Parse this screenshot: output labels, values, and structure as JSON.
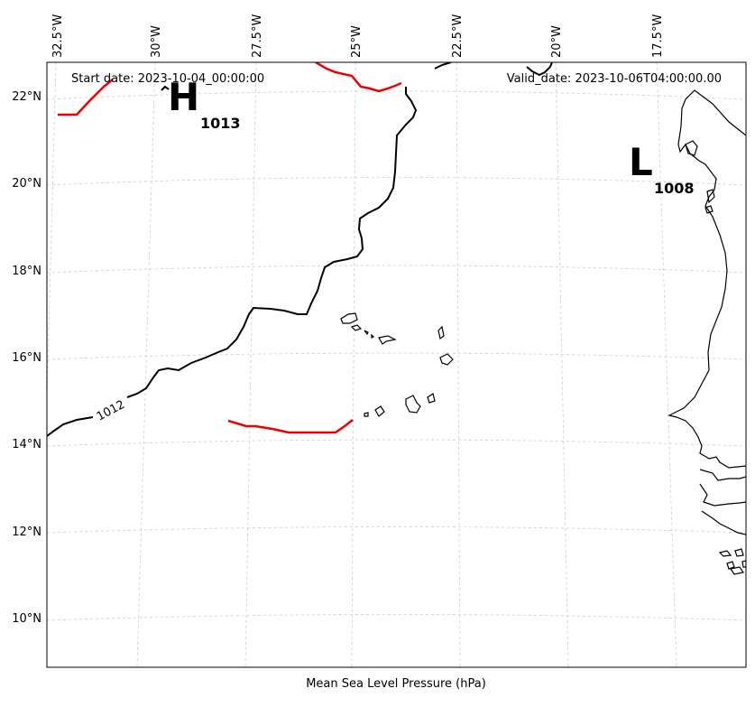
{
  "header": {
    "start_date": "Start date: 2023-10-04_00:00:00",
    "valid_date": "Valid_date: 2023-10-06T04:00:00.00"
  },
  "xaxis_label": "Mean Sea Level Pressure (hPa)",
  "lon_ticks": [
    "32.5°W",
    "30°W",
    "27.5°W",
    "25°W",
    "22.5°W",
    "20°W",
    "17.5°W"
  ],
  "lat_ticks": [
    "22°N",
    "20°N",
    "18°N",
    "16°N",
    "14°N",
    "12°N",
    "10°N"
  ],
  "pressure_centers": [
    {
      "type": "H",
      "value": "1013"
    },
    {
      "type": "L",
      "value": "1008"
    }
  ],
  "contour_labels": [
    "1012"
  ],
  "colors": {
    "isobar": "#000000",
    "highlight_isobar": "#ee0000",
    "grid": "#cccccc",
    "coast": "#000000"
  },
  "chart_data": {
    "type": "map",
    "title": "",
    "xlabel": "Mean Sea Level Pressure (hPa)",
    "lon_range": [
      -33,
      -16.5
    ],
    "lat_range": [
      9,
      22.8
    ],
    "pressure_systems": [
      {
        "type": "H",
        "pressure_hPa": 1013,
        "lon": -29.4,
        "lat": 21.8
      },
      {
        "type": "L",
        "pressure_hPa": 1008,
        "lon": -18.8,
        "lat": 20.5
      }
    ],
    "isobars_labeled": [
      1012
    ],
    "grid": true
  }
}
